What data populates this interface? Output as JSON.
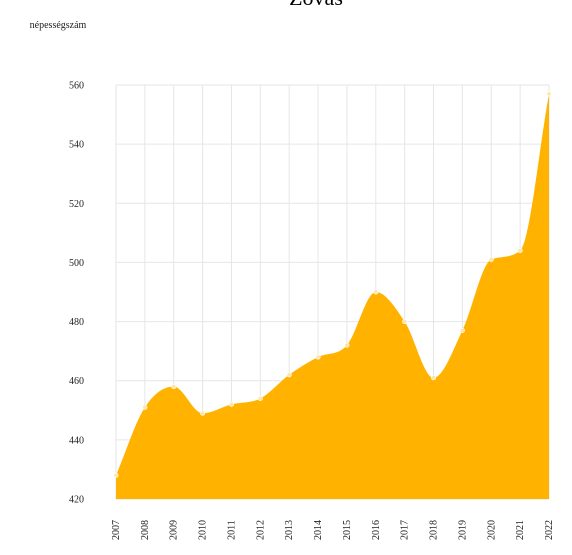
{
  "chart_data": {
    "type": "area",
    "title": "Zovas",
    "ylabel": "népességszám",
    "xlabel": "",
    "x": [
      "2007",
      "2008",
      "2009",
      "2010",
      "2011",
      "2012",
      "2013",
      "2014",
      "2015",
      "2016",
      "2017",
      "2018",
      "2019",
      "2020",
      "2021",
      "2022"
    ],
    "series": [
      {
        "name": "",
        "values": [
          428,
          451,
          458,
          449,
          452,
          454,
          462,
          468,
          472,
          490,
          480,
          461,
          477,
          501,
          504,
          557
        ]
      }
    ],
    "ylim": [
      420,
      560
    ],
    "yticks": [
      420,
      440,
      460,
      480,
      500,
      520,
      540,
      560
    ],
    "grid": true,
    "legend": "none",
    "fill_color": "#FFB300",
    "marker_color": "#FFE5A8"
  }
}
